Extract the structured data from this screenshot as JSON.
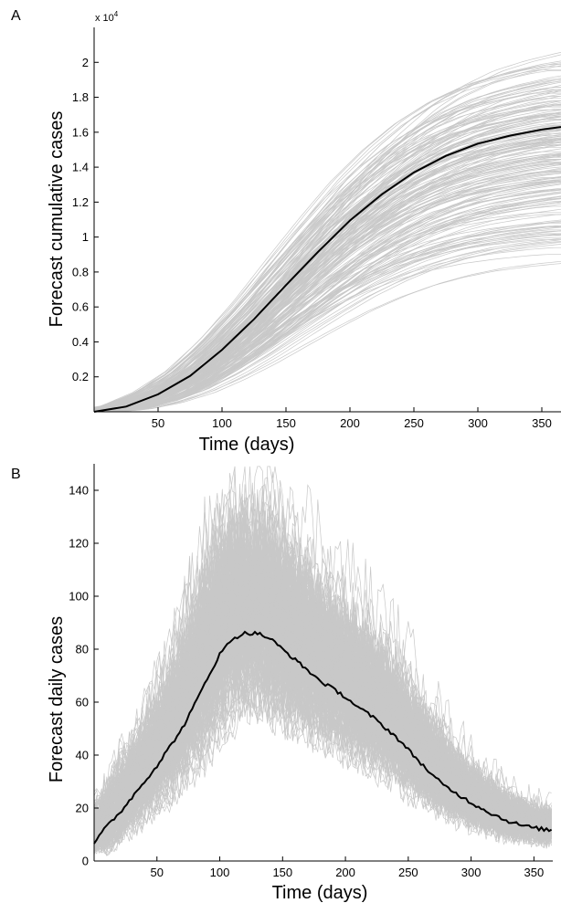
{
  "chart_data": [
    {
      "panel_label": "A",
      "type": "line",
      "xlabel": "Time (days)",
      "ylabel": "Forecast cumulative cases",
      "y_multiplier": "x 10",
      "y_multiplier_exp": "4",
      "xlim": [
        0,
        365
      ],
      "ylim": [
        0,
        22000
      ],
      "xticks": [
        50,
        100,
        150,
        200,
        250,
        300,
        350
      ],
      "yticks": [
        2000,
        4000,
        6000,
        8000,
        10000,
        12000,
        14000,
        16000,
        18000,
        20000
      ],
      "ytick_labels": [
        "0.2",
        "0.4",
        "0.6",
        "0.8",
        "1",
        "1.2",
        "1.4",
        "1.6",
        "1.8",
        "2"
      ],
      "grid": false,
      "colors": {
        "ensemble": "#c8c8c8",
        "mean": "#000000"
      },
      "ensemble_final_range": [
        8000,
        21500
      ],
      "ensemble_count": 200,
      "series": [
        {
          "x": [
            0,
            25,
            50,
            75,
            100,
            125,
            150,
            175,
            200,
            225,
            250,
            275,
            300,
            325,
            350,
            365
          ],
          "values": [
            0,
            300,
            1000,
            2050,
            3550,
            5300,
            7250,
            9150,
            10950,
            12450,
            13700,
            14650,
            15350,
            15800,
            16150,
            16300
          ]
        }
      ]
    },
    {
      "panel_label": "B",
      "type": "line",
      "xlabel": "Time (days)",
      "ylabel": "Forecast daily cases",
      "xlim": [
        0,
        365
      ],
      "ylim": [
        0,
        150
      ],
      "xticks": [
        50,
        100,
        150,
        200,
        250,
        300,
        350
      ],
      "yticks": [
        0,
        20,
        40,
        60,
        80,
        100,
        120,
        140
      ],
      "grid": false,
      "colors": {
        "ensemble": "#c8c8c8",
        "mean": "#000000"
      },
      "ensemble_peak_range": [
        45,
        150
      ],
      "ensemble_count": 200,
      "series": [
        {
          "x": [
            0,
            10,
            20,
            30,
            40,
            50,
            60,
            70,
            80,
            90,
            100,
            110,
            120,
            130,
            140,
            150,
            160,
            170,
            180,
            190,
            200,
            210,
            220,
            230,
            240,
            250,
            260,
            270,
            280,
            290,
            300,
            310,
            320,
            330,
            340,
            350,
            365
          ],
          "values": [
            7,
            13,
            18,
            24,
            30,
            36,
            43,
            50,
            59,
            69,
            78,
            84,
            86,
            86,
            84,
            80,
            76,
            72,
            68,
            65,
            62,
            58,
            55,
            51,
            47,
            42,
            37,
            32,
            28,
            25,
            22,
            19.5,
            17,
            15,
            13.5,
            12.5,
            11.5
          ]
        }
      ]
    }
  ]
}
